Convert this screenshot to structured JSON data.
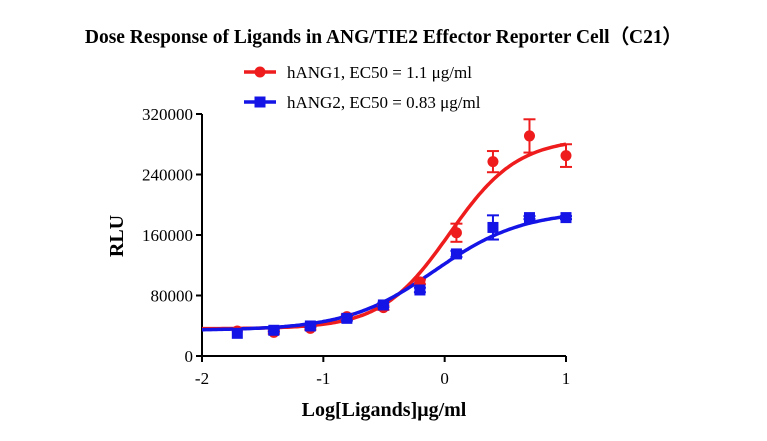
{
  "chart_data": {
    "type": "scatter",
    "title": "Dose Response of Ligands in ANG/TIE2 Effector Reporter Cell（C21）",
    "xlabel": "Log[Ligands]μg/ml",
    "ylabel": "RLU",
    "xlim": [
      -2,
      1
    ],
    "ylim": [
      0,
      320000
    ],
    "xticks": [
      -2,
      -1,
      0,
      1
    ],
    "xtick_labels": [
      "-2",
      "-1",
      "0",
      "1"
    ],
    "yticks": [
      0,
      80000,
      160000,
      240000,
      320000
    ],
    "ytick_labels": [
      "0",
      "80000",
      "160000",
      "240000",
      "320000"
    ],
    "grid": false,
    "legend_position": "top-center",
    "series": [
      {
        "name": "hANG1, EC50 = 1.1 μg/ml",
        "color": "#ee1c1c",
        "marker": "circle",
        "x": [
          -1.709,
          -1.408,
          -1.107,
          -0.806,
          -0.505,
          -0.204,
          0.097,
          0.398,
          0.699,
          1.0
        ],
        "y": [
          33000,
          31300,
          36600,
          52000,
          64000,
          98000,
          163000,
          257000,
          291000,
          265000
        ],
        "error": [
          0,
          2000,
          2000,
          3000,
          3000,
          3000,
          12000,
          14000,
          22000,
          15000
        ],
        "fit": {
          "model": "4PL",
          "bottom": 36000,
          "top": 288000,
          "logEC50": 0.041,
          "hill": 1.55
        }
      },
      {
        "name": "hANG2, EC50 = 0.83 μg/ml",
        "color": "#1414e6",
        "marker": "square",
        "x": [
          -1.709,
          -1.408,
          -1.107,
          -0.806,
          -0.505,
          -0.204,
          0.097,
          0.398,
          0.699,
          1.0
        ],
        "y": [
          30000,
          34000,
          39700,
          49800,
          67500,
          87300,
          135000,
          170000,
          183000,
          183000
        ],
        "error": [
          0,
          2000,
          2000,
          3000,
          3000,
          3000,
          4000,
          16000,
          2000,
          2000
        ],
        "fit": {
          "model": "4PL",
          "bottom": 34000,
          "top": 192000,
          "logEC50": -0.081,
          "hill": 1.2
        }
      }
    ]
  }
}
